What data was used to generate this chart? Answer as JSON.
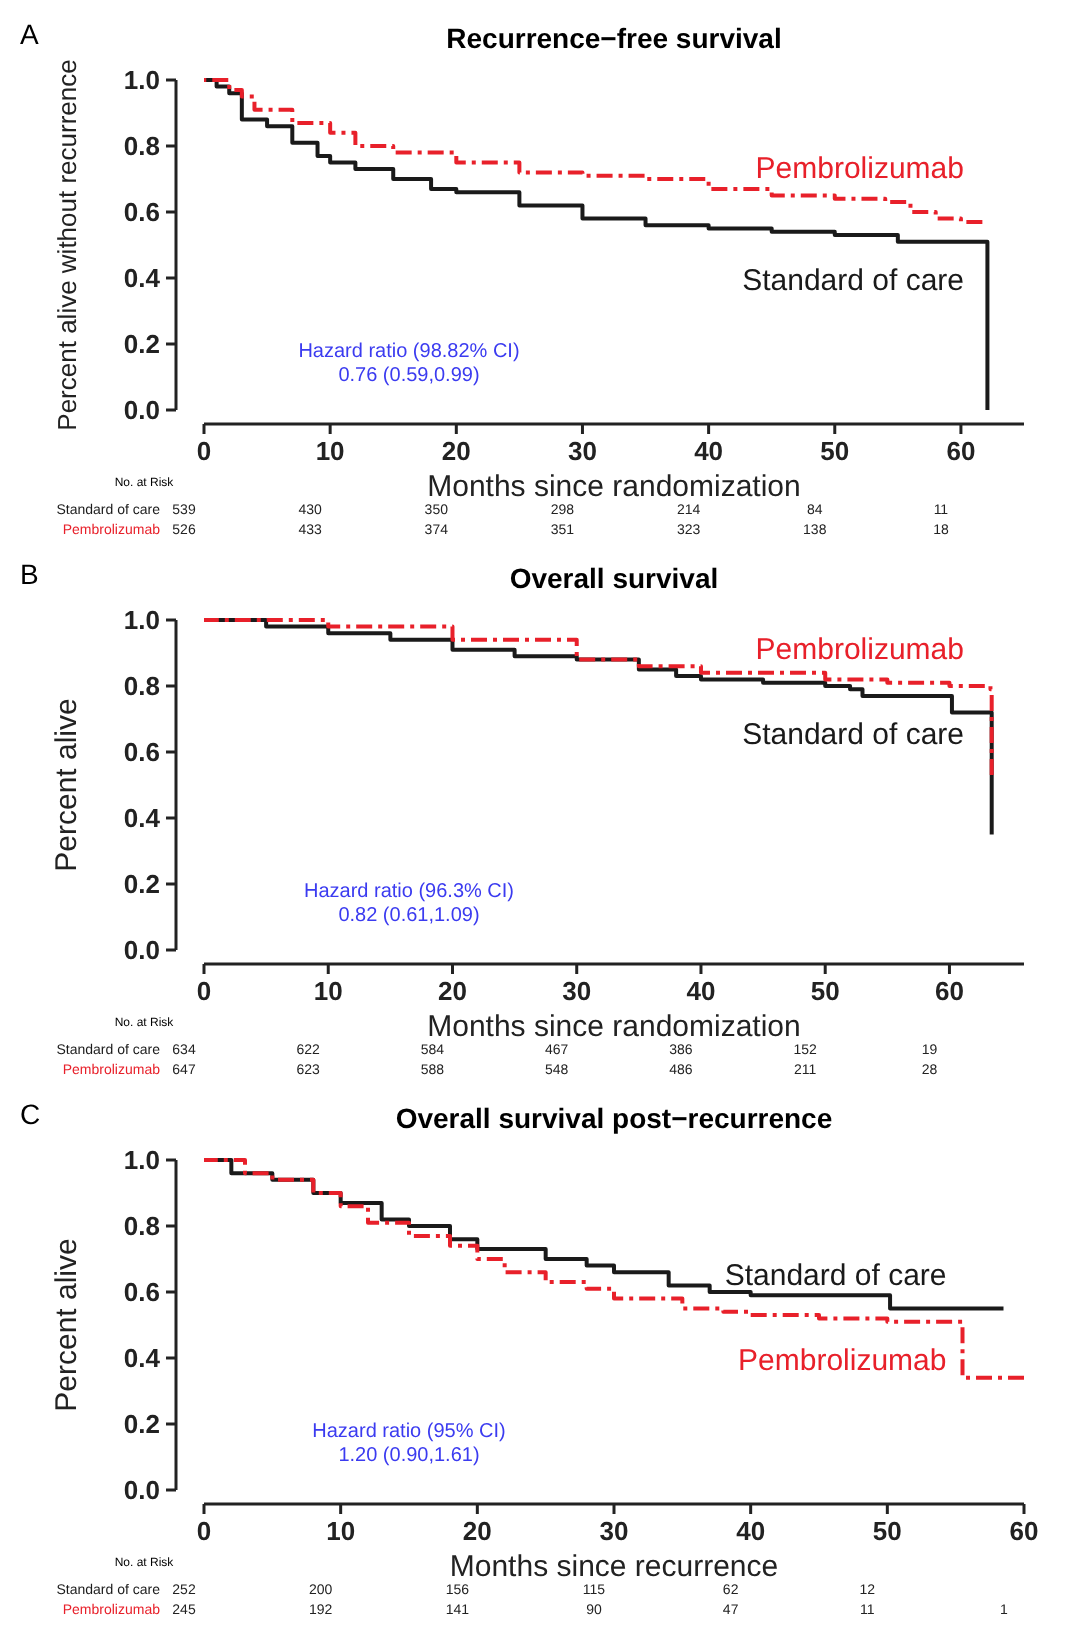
{
  "chart_data": [
    {
      "type": "step",
      "subtitle": "A",
      "title": "Recurrence−free survival",
      "xlabel": "Months since randomization",
      "ylabel": "Percent alive without recurrence",
      "xlim": [
        0,
        65
      ],
      "xticks": [
        0,
        10,
        20,
        30,
        40,
        50,
        60
      ],
      "ylim": [
        0,
        1
      ],
      "yticks": [
        {
          "value": 0,
          "label": "0.0"
        },
        {
          "value": 0.2,
          "label": "0.2"
        },
        {
          "value": 0.4,
          "label": "0.4"
        },
        {
          "value": 0.6,
          "label": "0.6"
        },
        {
          "value": 0.8,
          "label": "0.8"
        },
        {
          "value": 1,
          "label": "1.0"
        }
      ],
      "series": [
        {
          "name": "Standard of care",
          "color": "#1a1a1a",
          "line_style": "solid",
          "x": [
            0,
            1,
            2,
            3,
            5,
            7,
            9,
            10,
            12,
            15,
            18,
            20,
            25,
            30,
            35,
            40,
            45,
            50,
            53,
            55,
            62,
            62.1
          ],
          "values": [
            1,
            0.98,
            0.96,
            0.88,
            0.86,
            0.81,
            0.77,
            0.75,
            0.73,
            0.7,
            0.67,
            0.66,
            0.62,
            0.58,
            0.56,
            0.55,
            0.54,
            0.53,
            0.53,
            0.51,
            0.51,
            0
          ]
        },
        {
          "name": "Pembrolizumab",
          "color": "#e8202a",
          "line_style": "dashed",
          "x": [
            0,
            2,
            3,
            4,
            7,
            10,
            12,
            15,
            20,
            25,
            30,
            35,
            40,
            45,
            50,
            54,
            56,
            58,
            60,
            61.7
          ],
          "values": [
            1,
            0.97,
            0.95,
            0.91,
            0.87,
            0.84,
            0.8,
            0.78,
            0.75,
            0.72,
            0.71,
            0.7,
            0.67,
            0.65,
            0.64,
            0.63,
            0.6,
            0.58,
            0.57,
            0.57
          ]
        }
      ],
      "annotations": [
        "Hazard ratio (98.82% CI)",
        "0.76 (0.59,0.99)",
        "No. at Risk",
        "Standard of care",
        "539",
        "430",
        "350",
        "298",
        "214",
        "84",
        "11",
        "Pembrolizumab",
        "526",
        "433",
        "374",
        "351",
        "323",
        "138",
        "18"
      ]
    },
    {
      "type": "step",
      "subtitle": "B",
      "title": "Overall survival",
      "xlabel": "Months since randomization",
      "ylabel": "Percent alive",
      "xlim": [
        0,
        66
      ],
      "xticks": [
        0,
        10,
        20,
        30,
        40,
        50,
        60
      ],
      "ylim": [
        0,
        1
      ],
      "yticks": [
        {
          "value": 0,
          "label": "0.0"
        },
        {
          "value": 0.2,
          "label": "0.2"
        },
        {
          "value": 0.4,
          "label": "0.4"
        },
        {
          "value": 0.6,
          "label": "0.6"
        },
        {
          "value": 0.8,
          "label": "0.8"
        },
        {
          "value": 1,
          "label": "1.0"
        }
      ],
      "series": [
        {
          "name": "Standard of care",
          "color": "#1a1a1a",
          "line_style": "solid",
          "x": [
            0,
            5,
            10,
            15,
            20,
            25,
            30,
            35,
            38,
            40,
            45,
            50,
            52,
            53,
            60,
            60.2,
            63.3,
            63.4
          ],
          "values": [
            1,
            0.98,
            0.96,
            0.94,
            0.91,
            0.89,
            0.88,
            0.85,
            0.83,
            0.82,
            0.81,
            0.8,
            0.79,
            0.77,
            0.77,
            0.72,
            0.72,
            0.35
          ]
        },
        {
          "name": "Pembrolizumab",
          "color": "#e8202a",
          "line_style": "dashed",
          "x": [
            0,
            10,
            20,
            30,
            35,
            40,
            50,
            55,
            60,
            63.3,
            63.4
          ],
          "values": [
            1,
            0.98,
            0.94,
            0.88,
            0.86,
            0.84,
            0.82,
            0.81,
            0.8,
            0.79,
            0.53
          ]
        }
      ],
      "annotations": [
        "Hazard ratio (96.3% CI)",
        "0.82 (0.61,1.09)",
        "No. at Risk",
        "Standard of care",
        "634",
        "622",
        "584",
        "467",
        "386",
        "152",
        "19",
        "Pembrolizumab",
        "647",
        "623",
        "588",
        "548",
        "486",
        "211",
        "28"
      ]
    },
    {
      "type": "step",
      "subtitle": "C",
      "title": "Overall survival post−recurrence",
      "xlabel": "Months since recurrence",
      "ylabel": "Percent alive",
      "xlim": [
        0,
        60
      ],
      "xticks": [
        0,
        10,
        20,
        30,
        40,
        50,
        60
      ],
      "ylim": [
        0,
        1
      ],
      "yticks": [
        {
          "value": 0,
          "label": "0.0"
        },
        {
          "value": 0.2,
          "label": "0.2"
        },
        {
          "value": 0.4,
          "label": "0.4"
        },
        {
          "value": 0.6,
          "label": "0.6"
        },
        {
          "value": 0.8,
          "label": "0.8"
        },
        {
          "value": 1,
          "label": "1.0"
        }
      ],
      "series": [
        {
          "name": "Standard of care",
          "color": "#1a1a1a",
          "line_style": "solid",
          "x": [
            0,
            2,
            5,
            8,
            10,
            13,
            15,
            18,
            20,
            25,
            28,
            30,
            34,
            37,
            40,
            50.2,
            58.5
          ],
          "values": [
            1,
            0.96,
            0.94,
            0.9,
            0.87,
            0.82,
            0.8,
            0.76,
            0.73,
            0.7,
            0.68,
            0.66,
            0.62,
            0.6,
            0.59,
            0.55,
            0.55
          ]
        },
        {
          "name": "Pembrolizumab",
          "color": "#e8202a",
          "line_style": "dashed",
          "x": [
            0,
            3,
            5,
            8,
            10,
            12,
            15,
            18,
            20,
            22,
            25,
            28,
            30,
            35,
            38,
            40,
            45,
            50,
            55.5,
            60
          ],
          "values": [
            1,
            0.96,
            0.94,
            0.9,
            0.86,
            0.81,
            0.77,
            0.74,
            0.7,
            0.66,
            0.63,
            0.61,
            0.58,
            0.55,
            0.54,
            0.53,
            0.52,
            0.51,
            0.34,
            0.34
          ]
        }
      ],
      "annotations": [
        "Hazard ratio (95% CI)",
        "1.20 (0.90,1.61)",
        "No. at Risk",
        "Standard of care",
        "252",
        "200",
        "156",
        "115",
        "62",
        "12",
        "Pembrolizumab",
        "245",
        "192",
        "141",
        "90",
        "47",
        "11",
        "1"
      ]
    }
  ]
}
